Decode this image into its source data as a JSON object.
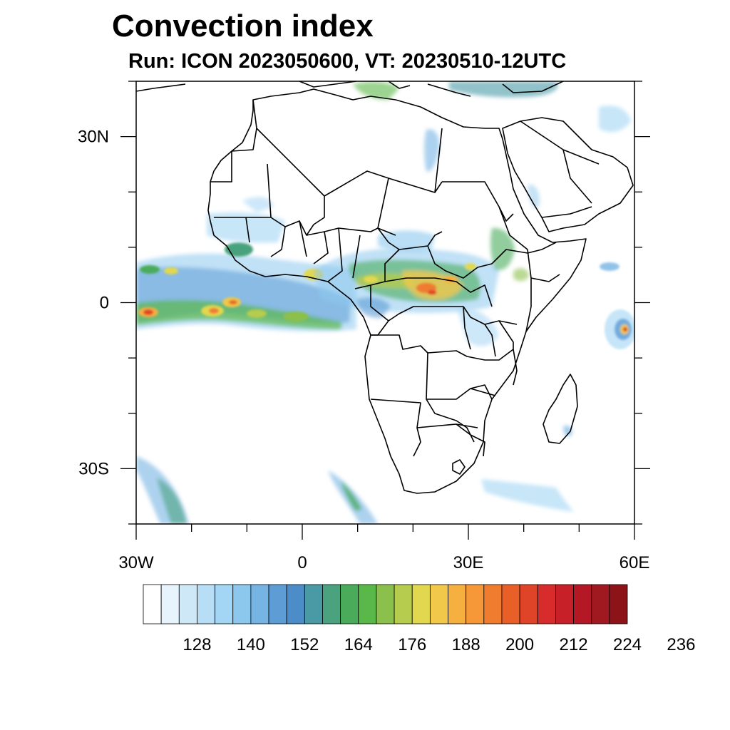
{
  "header": {
    "title": "Convection index",
    "subtitle": "Run: ICON 2023050600,  VT: 20230510-12UTC"
  },
  "map": {
    "lon_range": [
      -30,
      60
    ],
    "lat_range": [
      -40,
      40
    ],
    "lat_ticks": [
      {
        "value": 30,
        "label": "30N"
      },
      {
        "value": 0,
        "label": "0"
      },
      {
        "value": -30,
        "label": "30S"
      }
    ],
    "lon_ticks": [
      {
        "value": -30,
        "label": "30W"
      },
      {
        "value": 0,
        "label": "0"
      },
      {
        "value": 30,
        "label": "30E"
      },
      {
        "value": 60,
        "label": "60E"
      }
    ]
  },
  "colorbar": {
    "colors": [
      "#ffffff",
      "#e8f4fc",
      "#cfe8f8",
      "#b8def6",
      "#a2d6f4",
      "#8cc8ee",
      "#76b4e4",
      "#5e9cd6",
      "#4c8cc8",
      "#4a9aa6",
      "#4aa27e",
      "#4aac5a",
      "#5ab84a",
      "#8cc04c",
      "#b6cc4e",
      "#e2d850",
      "#f2c84a",
      "#f6b040",
      "#f69838",
      "#f07c30",
      "#e86028",
      "#e04428",
      "#d82c2c",
      "#c82028",
      "#b41824",
      "#a01820",
      "#8c1418"
    ],
    "labels": [
      "128",
      "140",
      "152",
      "164",
      "176",
      "188",
      "200",
      "212",
      "224",
      "236"
    ]
  }
}
